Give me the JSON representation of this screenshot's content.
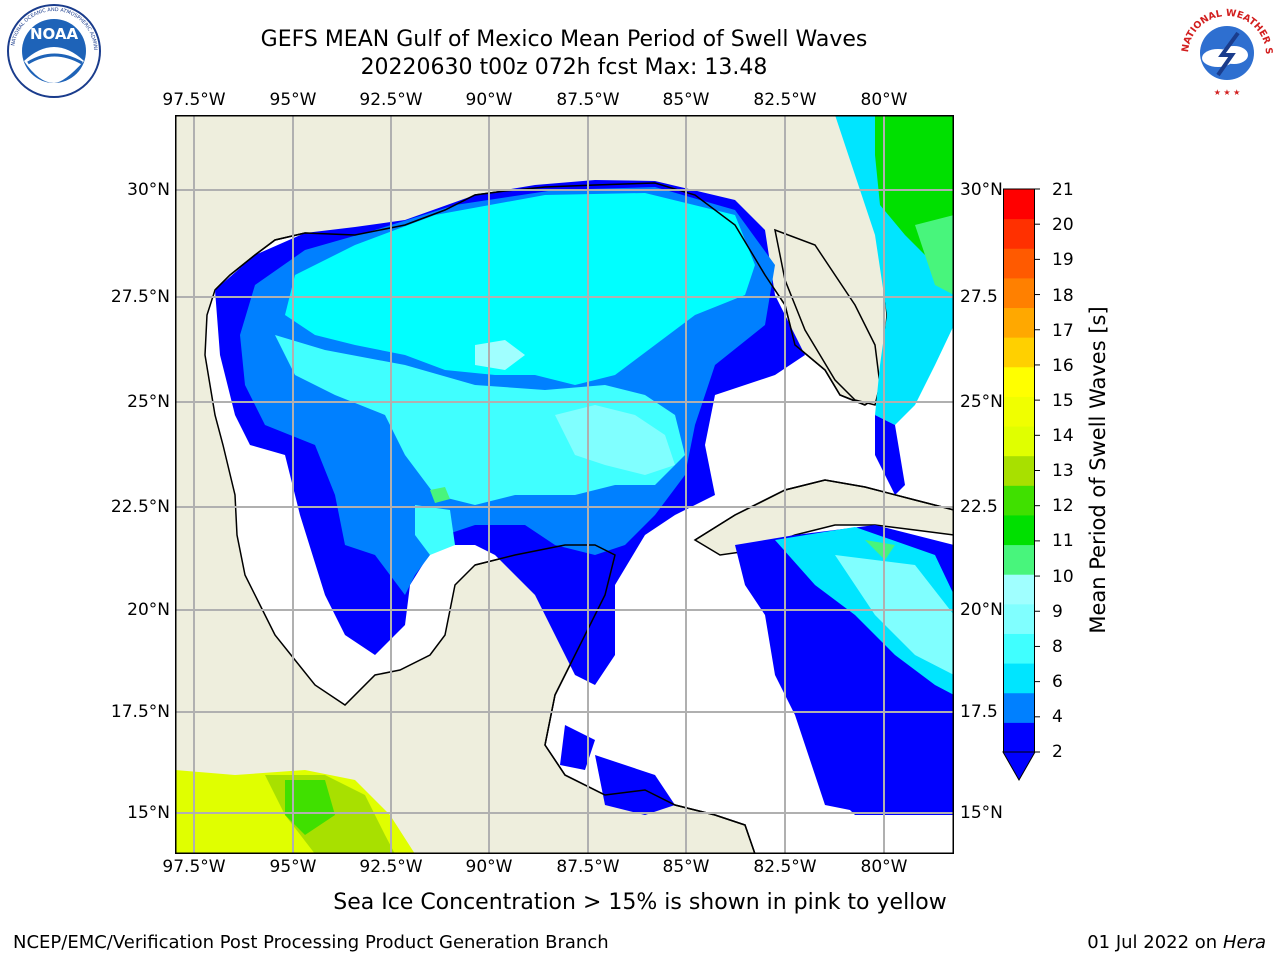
{
  "title": {
    "line1": "GEFS MEAN Gulf of Mexico Mean Period of Swell Waves",
    "line2": "20220630 t00z 072h fcst   Max: 13.48"
  },
  "map": {
    "lon_labels": [
      "97.5°W",
      "95°W",
      "92.5°W",
      "90°W",
      "87.5°W",
      "85°W",
      "82.5°W",
      "80°W"
    ],
    "lat_labels_left": [
      "30°N",
      "27.5°N",
      "25°N",
      "22.5°N",
      "20°N",
      "17.5°N",
      "15°N"
    ],
    "lat_labels_right": [
      "30°N",
      "27.5",
      "25°N",
      "22.5",
      "20°N",
      "17.5",
      "15°N"
    ],
    "land_color": "#eeeedd",
    "grid_color": "#b0b0b0"
  },
  "colorbar": {
    "label": "Mean Period of Swell Waves [s]",
    "ticks": [
      "21",
      "20",
      "19",
      "18",
      "17",
      "16",
      "15",
      "14",
      "13",
      "12",
      "11",
      "10",
      "9",
      "8",
      "6",
      "4",
      "2"
    ],
    "colors": [
      "#0000ff",
      "#0080ff",
      "#00e5ff",
      "#40ffff",
      "#80ffff",
      "#a0ffff",
      "#48f57c",
      "#00e000",
      "#40e000",
      "#a8e000",
      "#e0ff00",
      "#f0ff00",
      "#ffff00",
      "#ffd000",
      "#ffa800",
      "#ff8000",
      "#ff5a00",
      "#ff3000",
      "#ff0000"
    ]
  },
  "note": "Sea Ice Concentration > 15% is shown in pink to yellow",
  "footer": {
    "left": "NCEP/EMC/Verification Post Processing Product Generation Branch",
    "right_prefix": "01 Jul 2022 on ",
    "right_host": "Hera"
  },
  "logos": {
    "noaa_text": "NOAA",
    "nws_text": "NATIONAL WEATHER SERVICE"
  }
}
